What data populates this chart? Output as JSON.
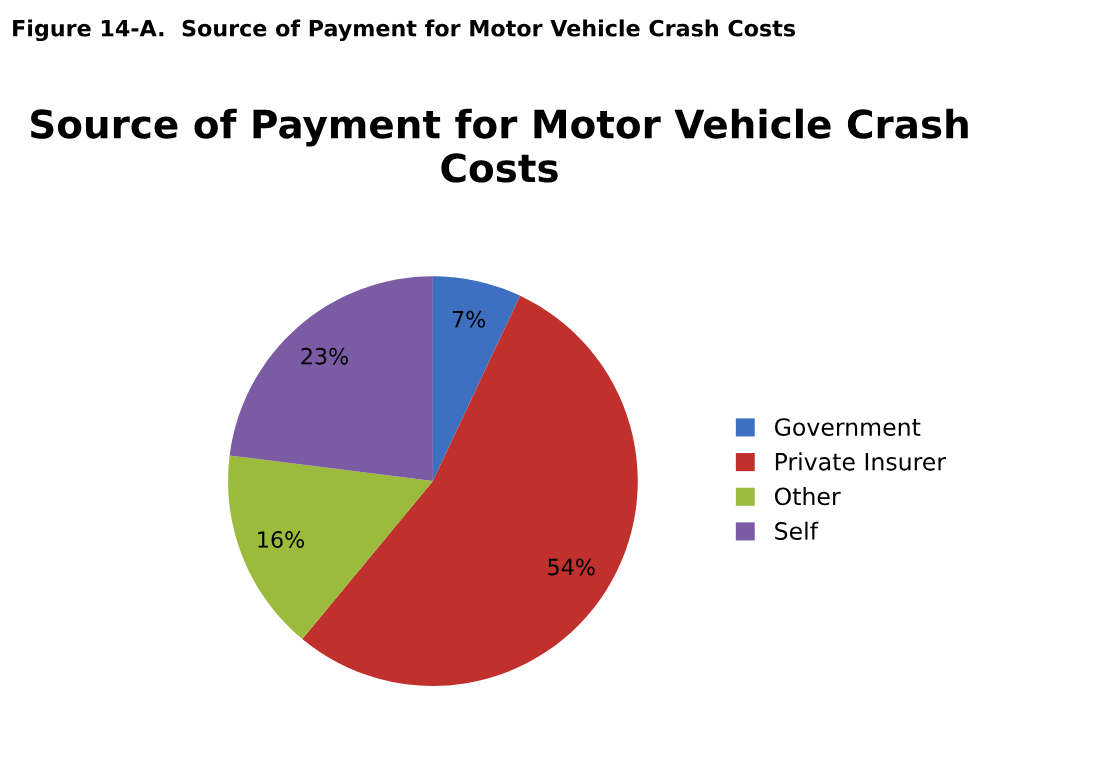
{
  "chart_data": {
    "type": "pie",
    "title": "Source of Payment for Motor Vehicle Crash Costs",
    "annotations": [
      "Figure 14-A.  Source of Payment for Motor Vehicle Crash Costs"
    ],
    "categories": [
      "Government",
      "Private Insurer",
      "Other",
      "Self"
    ],
    "values": [
      7,
      54,
      16,
      23
    ],
    "colors": [
      "#3d70c0",
      "#c0302c",
      "#9bbb3c",
      "#7b5ba3"
    ],
    "value_labels": [
      "7%",
      "54%",
      "16%",
      "23%"
    ],
    "legend": "right"
  }
}
